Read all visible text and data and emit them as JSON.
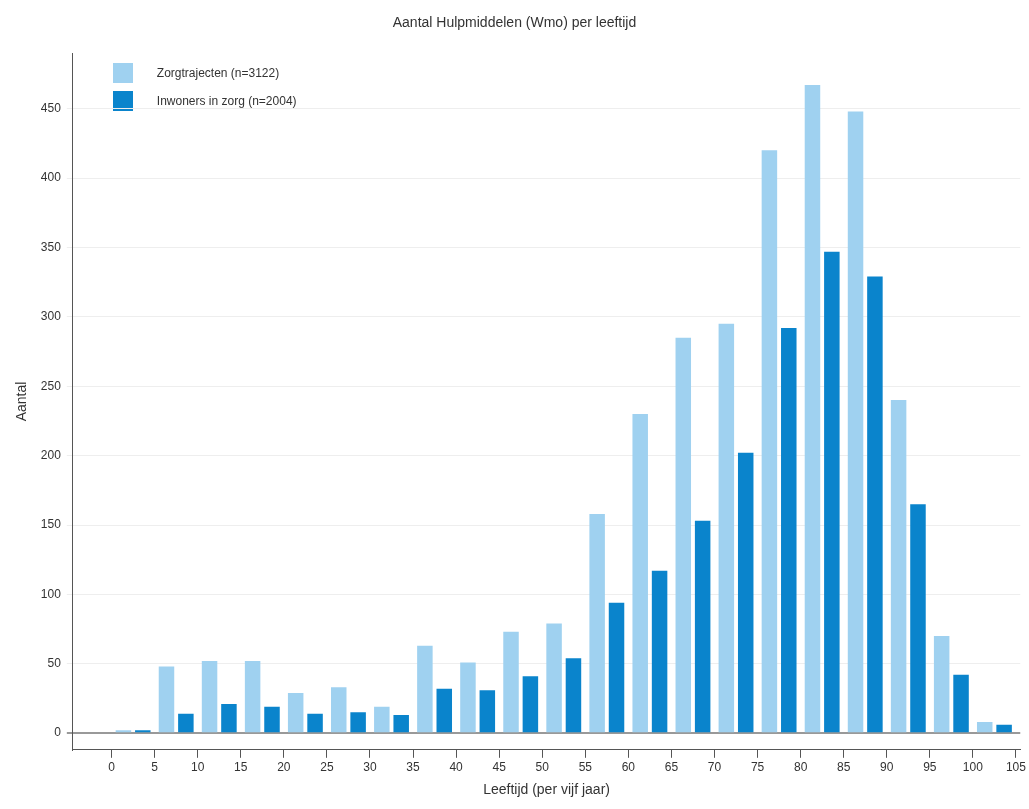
{
  "chart_data": {
    "type": "bar",
    "title": "Aantal Hulpmiddelen (Wmo) per leeftijd",
    "xlabel": "Leeftijd (per vijf jaar)",
    "ylabel": "Aantal",
    "x": [
      2.5,
      7.5,
      12.5,
      17.5,
      22.5,
      27.5,
      32.5,
      37.5,
      42.5,
      47.5,
      52.5,
      57.5,
      62.5,
      67.5,
      72.5,
      77.5,
      82.5,
      87.5,
      92.5,
      97.5,
      102.5
    ],
    "series": [
      {
        "name": "Zorgtrajecten (n=3122)",
        "color": "#9fd1f0",
        "values": [
          2,
          48,
          52,
          52,
          29,
          33,
          19,
          63,
          51,
          73,
          79,
          158,
          230,
          285,
          295,
          420,
          467,
          448,
          240,
          70,
          8
        ]
      },
      {
        "name": "Inwoners in zorg (n=2004)",
        "color": "#0a84cc",
        "values": [
          2,
          14,
          21,
          19,
          14,
          15,
          13,
          32,
          31,
          41,
          54,
          94,
          117,
          153,
          202,
          292,
          347,
          329,
          165,
          42,
          6
        ]
      }
    ],
    "xlim": [
      -4.5,
      105.5
    ],
    "xticks": [
      0,
      5,
      10,
      15,
      20,
      25,
      30,
      35,
      40,
      45,
      50,
      55,
      60,
      65,
      70,
      75,
      80,
      85,
      90,
      95,
      100,
      105
    ],
    "ylim": [
      -12,
      490
    ],
    "yticks": [
      0,
      50,
      100,
      150,
      200,
      250,
      300,
      350,
      400,
      450
    ],
    "grid": "y",
    "legend": "top left"
  }
}
